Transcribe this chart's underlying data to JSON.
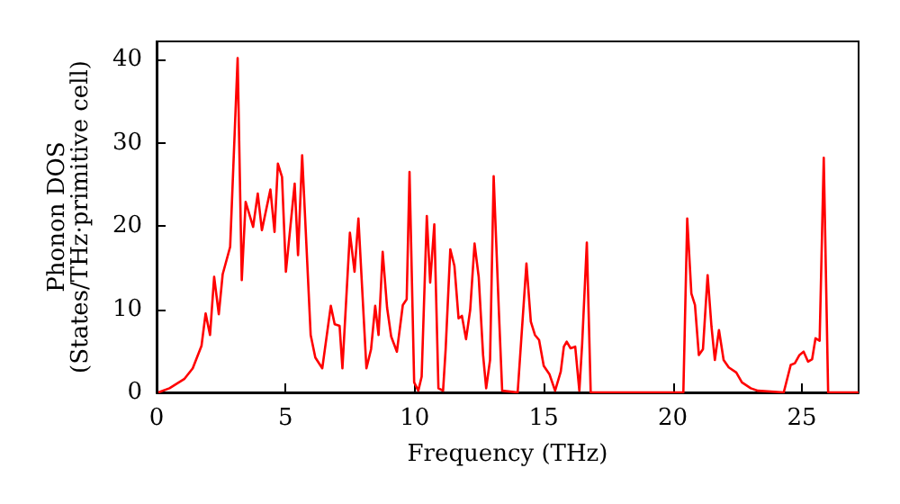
{
  "chart_data": {
    "type": "line",
    "xlabel": "Frequency (THz)",
    "ylabel": "Phonon DOS\n(States/THz·primitive cell)",
    "xlim": [
      0,
      27.2
    ],
    "ylim": [
      0,
      42.2
    ],
    "xticks": [
      0,
      5,
      10,
      15,
      20,
      25
    ],
    "yticks": [
      0,
      10,
      20,
      30,
      40
    ],
    "grid": false,
    "marker": "none",
    "line_style": "solid",
    "series": [
      {
        "color": "#ff0000",
        "x": [
          0.07,
          0.5,
          1.07,
          1.4,
          1.74,
          1.9,
          2.07,
          2.23,
          2.41,
          2.56,
          2.85,
          3.14,
          3.3,
          3.45,
          3.74,
          3.92,
          4.08,
          4.41,
          4.57,
          4.7,
          4.86,
          5.01,
          5.35,
          5.48,
          5.64,
          5.97,
          6.15,
          6.42,
          6.75,
          6.9,
          7.09,
          7.2,
          7.49,
          7.67,
          7.82,
          8.13,
          8.31,
          8.47,
          8.6,
          8.76,
          8.93,
          9.09,
          9.31,
          9.54,
          9.69,
          9.8,
          9.98,
          10.14,
          10.27,
          10.47,
          10.6,
          10.76,
          10.92,
          11.1,
          11.2,
          11.38,
          11.54,
          11.7,
          11.83,
          11.99,
          12.15,
          12.32,
          12.48,
          12.65,
          12.77,
          12.92,
          13.06,
          13.26,
          13.39,
          13.99,
          14.33,
          14.5,
          14.66,
          14.82,
          15.0,
          15.22,
          15.44,
          15.66,
          15.78,
          15.89,
          16.04,
          16.22,
          16.38,
          16.49,
          16.67,
          16.82,
          20.41,
          20.56,
          20.72,
          20.86,
          21.01,
          21.17,
          21.35,
          21.5,
          21.63,
          21.79,
          21.97,
          22.17,
          22.46,
          22.68,
          23.02,
          23.3,
          24.3,
          24.57,
          24.73,
          24.91,
          25.07,
          25.24,
          25.4,
          25.53,
          25.69,
          25.85,
          26.02,
          27.2
        ],
        "values": [
          0,
          0.5,
          1.6,
          2.9,
          5.6,
          9.5,
          6.9,
          13.9,
          9.4,
          14.2,
          17.5,
          40.2,
          13.5,
          22.9,
          19.9,
          23.9,
          19.5,
          24.4,
          19.3,
          27.5,
          25.9,
          14.5,
          25.1,
          16.5,
          28.5,
          6.9,
          4.2,
          2.9,
          10.4,
          8.2,
          8.0,
          2.9,
          19.2,
          14.5,
          20.9,
          2.9,
          5.2,
          10.4,
          6.9,
          16.9,
          10.2,
          6.7,
          4.9,
          10.5,
          11.2,
          26.5,
          1.2,
          0.2,
          1.9,
          21.2,
          13.2,
          20.2,
          0.5,
          0.2,
          5.2,
          17.2,
          15.2,
          8.9,
          9.2,
          6.4,
          9.9,
          17.9,
          13.9,
          4.5,
          0.5,
          3.9,
          26.0,
          9.9,
          0.2,
          0,
          15.5,
          8.5,
          6.9,
          6.3,
          3.2,
          2.2,
          0.2,
          2.5,
          5.5,
          6.1,
          5.3,
          5.5,
          0.2,
          5.9,
          18.0,
          0,
          0,
          20.9,
          11.9,
          10.5,
          4.5,
          5.2,
          14.1,
          7.9,
          3.9,
          7.5,
          3.9,
          3.0,
          2.4,
          1.2,
          0.5,
          0.2,
          0,
          3.3,
          3.5,
          4.5,
          4.9,
          3.7,
          4.0,
          6.5,
          6.2,
          28.2,
          0,
          0
        ]
      }
    ]
  }
}
